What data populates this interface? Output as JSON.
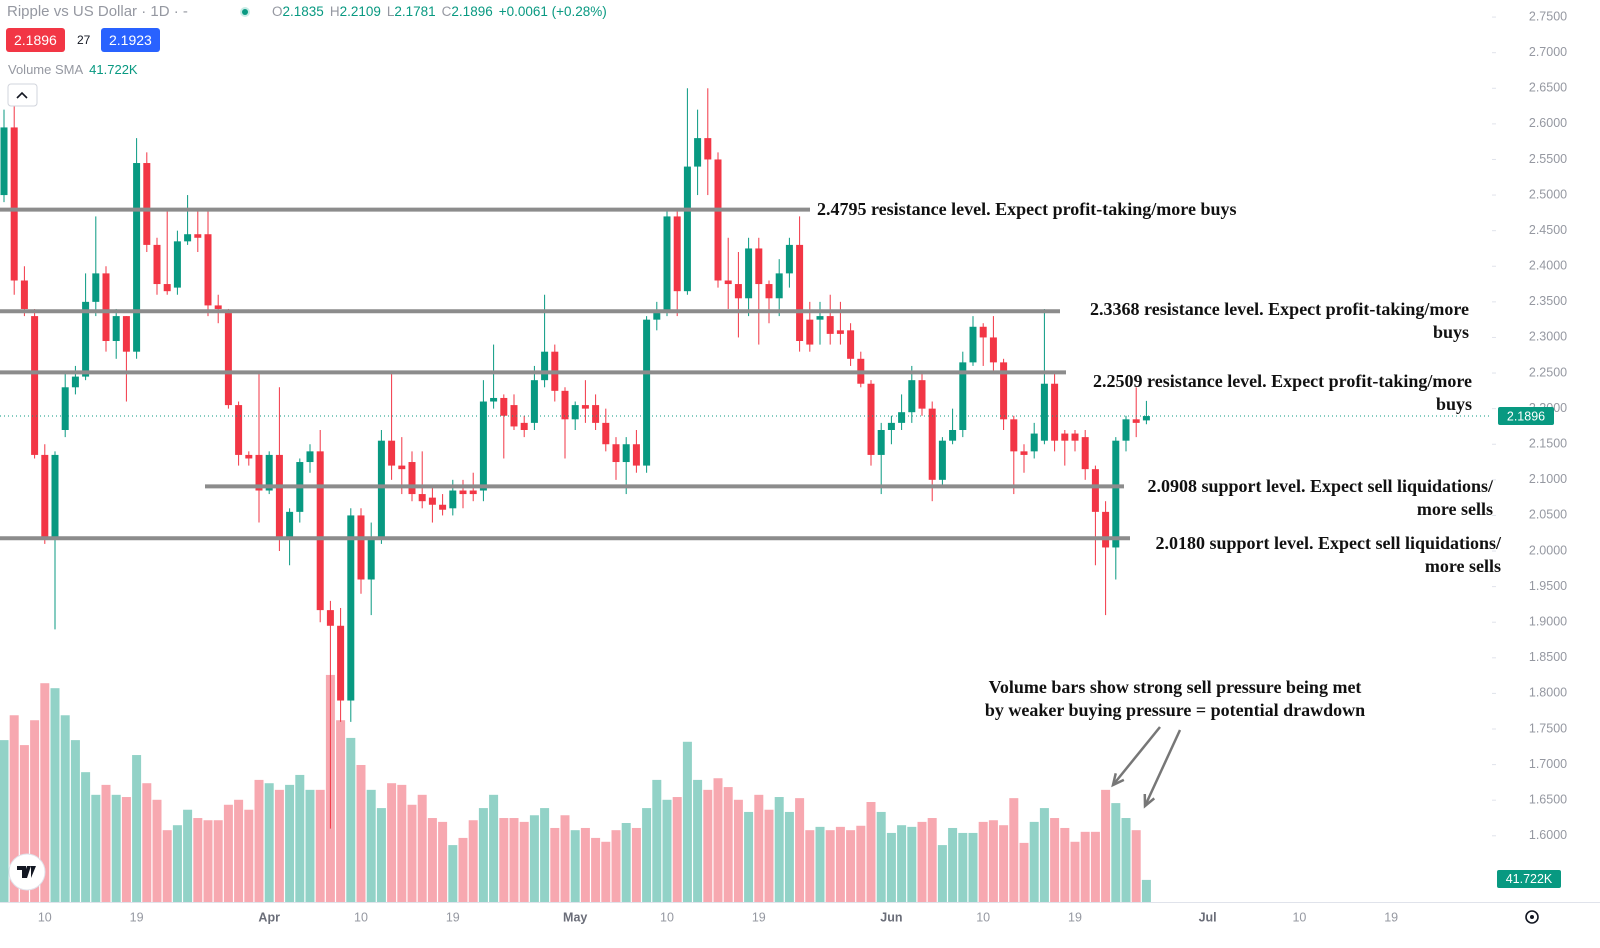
{
  "chart_data": {
    "type": "candlestick",
    "title": "Ripple vs US Dollar · 1D · -",
    "ohlc_labels": [
      {
        "key": "O",
        "value": "2.1835"
      },
      {
        "key": "H",
        "value": "2.2109"
      },
      {
        "key": "L",
        "value": "2.1781"
      },
      {
        "key": "C",
        "value": "2.1896"
      }
    ],
    "change": "+0.0061 (+0.28%)",
    "bid": "2.1896",
    "spread": "27",
    "ask": "2.1923",
    "volume_label": "Volume SMA",
    "volume_sma": {
      "value": 41.722,
      "label": "41.722K"
    },
    "last_price": 2.1896,
    "ylim": [
      1.507,
      2.774
    ],
    "yticks": [
      {
        "value": 2.75,
        "label": "2.7500"
      },
      {
        "value": 2.7,
        "label": "2.7000"
      },
      {
        "value": 2.65,
        "label": "2.6500"
      },
      {
        "value": 2.6,
        "label": "2.6000"
      },
      {
        "value": 2.55,
        "label": "2.5500"
      },
      {
        "value": 2.5,
        "label": "2.5000"
      },
      {
        "value": 2.45,
        "label": "2.4500"
      },
      {
        "value": 2.4,
        "label": "2.4000"
      },
      {
        "value": 2.35,
        "label": "2.3500"
      },
      {
        "value": 2.3,
        "label": "2.3000"
      },
      {
        "value": 2.25,
        "label": "2.2500"
      },
      {
        "value": 2.2,
        "label": "2.2000"
      },
      {
        "value": 2.15,
        "label": "2.1500"
      },
      {
        "value": 2.1,
        "label": "2.1000"
      },
      {
        "value": 2.05,
        "label": "2.0500"
      },
      {
        "value": 2.0,
        "label": "2.0000"
      },
      {
        "value": 1.95,
        "label": "1.9500"
      },
      {
        "value": 1.9,
        "label": "1.9000"
      },
      {
        "value": 1.85,
        "label": "1.8500"
      },
      {
        "value": 1.8,
        "label": "1.8000"
      },
      {
        "value": 1.75,
        "label": "1.7500"
      },
      {
        "value": 1.7,
        "label": "1.7000"
      },
      {
        "value": 1.65,
        "label": "1.6500"
      },
      {
        "value": 1.6,
        "label": "1.6000"
      }
    ],
    "colors": {
      "up": "#089981",
      "down": "#f23645",
      "volume_up": "#92d2c7",
      "volume_down": "#f7a8b0"
    },
    "categories": [
      null,
      null,
      null,
      null,
      "10",
      null,
      null,
      null,
      null,
      null,
      null,
      null,
      null,
      "19",
      null,
      null,
      null,
      null,
      null,
      null,
      null,
      null,
      null,
      null,
      null,
      null,
      "Apr",
      null,
      null,
      null,
      null,
      null,
      null,
      null,
      null,
      "10",
      null,
      null,
      null,
      null,
      null,
      null,
      null,
      null,
      "19",
      null,
      null,
      null,
      null,
      null,
      null,
      null,
      null,
      null,
      null,
      null,
      "May",
      null,
      null,
      null,
      null,
      null,
      null,
      null,
      null,
      "10",
      null,
      null,
      null,
      null,
      null,
      null,
      null,
      null,
      "19",
      null,
      null,
      null,
      null,
      null,
      null,
      null,
      null,
      null,
      null,
      null,
      null,
      "Jun",
      null,
      null,
      null,
      null,
      null,
      null,
      null,
      null,
      "10",
      null,
      null,
      null,
      null,
      null,
      null,
      null,
      null,
      "19",
      null,
      null,
      null,
      null,
      null,
      null,
      null,
      null,
      null,
      null,
      null,
      null,
      "Jul",
      null,
      null,
      null,
      null,
      null,
      null,
      null,
      null,
      "10",
      null,
      null,
      null,
      null,
      null,
      null,
      null,
      null,
      "19"
    ],
    "series": [
      {
        "values": [
          [
            2.5,
            2.62,
            2.49,
            2.595
          ],
          [
            2.595,
            2.63,
            2.36,
            2.38
          ],
          [
            2.38,
            2.4,
            2.33,
            2.34
          ],
          [
            2.33,
            2.34,
            2.13,
            2.135
          ],
          [
            2.135,
            2.15,
            2.01,
            2.02
          ],
          [
            2.02,
            2.14,
            1.89,
            2.135
          ],
          [
            2.17,
            2.25,
            2.16,
            2.23
          ],
          [
            2.23,
            2.26,
            2.22,
            2.245
          ],
          [
            2.245,
            2.39,
            2.24,
            2.35
          ],
          [
            2.35,
            2.47,
            2.33,
            2.39
          ],
          [
            2.39,
            2.4,
            2.28,
            2.295
          ],
          [
            2.295,
            2.34,
            2.27,
            2.33
          ],
          [
            2.33,
            2.33,
            2.21,
            2.28
          ],
          [
            2.28,
            2.58,
            2.27,
            2.545
          ],
          [
            2.545,
            2.56,
            2.42,
            2.43
          ],
          [
            2.43,
            2.44,
            2.36,
            2.375
          ],
          [
            2.375,
            2.48,
            2.36,
            2.365
          ],
          [
            2.37,
            2.45,
            2.36,
            2.435
          ],
          [
            2.435,
            2.5,
            2.43,
            2.445
          ],
          [
            2.445,
            2.48,
            2.42,
            2.44
          ],
          [
            2.445,
            2.48,
            2.33,
            2.345
          ],
          [
            2.345,
            2.36,
            2.32,
            2.34
          ],
          [
            2.335,
            2.34,
            2.2,
            2.205
          ],
          [
            2.205,
            2.21,
            2.12,
            2.135
          ],
          [
            2.135,
            2.14,
            2.12,
            2.13
          ],
          [
            2.135,
            2.25,
            2.04,
            2.085
          ],
          [
            2.085,
            2.14,
            2.08,
            2.135
          ],
          [
            2.135,
            2.23,
            2.0,
            2.02
          ],
          [
            2.02,
            2.06,
            1.98,
            2.055
          ],
          [
            2.055,
            2.13,
            2.04,
            2.125
          ],
          [
            2.125,
            2.15,
            2.11,
            2.14
          ],
          [
            2.14,
            2.17,
            1.9,
            1.917
          ],
          [
            1.917,
            1.93,
            1.61,
            1.895
          ],
          [
            1.895,
            1.92,
            1.76,
            1.79
          ],
          [
            1.79,
            2.06,
            1.76,
            2.05
          ],
          [
            2.05,
            2.06,
            1.94,
            1.96
          ],
          [
            1.96,
            2.04,
            1.91,
            2.02
          ],
          [
            2.02,
            2.17,
            2.01,
            2.155
          ],
          [
            2.155,
            2.25,
            2.1,
            2.12
          ],
          [
            2.12,
            2.16,
            2.08,
            2.115
          ],
          [
            2.125,
            2.14,
            2.07,
            2.08
          ],
          [
            2.08,
            2.14,
            2.06,
            2.07
          ],
          [
            2.075,
            2.09,
            2.04,
            2.065
          ],
          [
            2.065,
            2.08,
            2.05,
            2.058
          ],
          [
            2.06,
            2.1,
            2.05,
            2.085
          ],
          [
            2.085,
            2.1,
            2.06,
            2.08
          ],
          [
            2.085,
            2.11,
            2.07,
            2.08
          ],
          [
            2.085,
            2.24,
            2.07,
            2.21
          ],
          [
            2.21,
            2.29,
            2.2,
            2.215
          ],
          [
            2.215,
            2.22,
            2.13,
            2.19
          ],
          [
            2.205,
            2.22,
            2.17,
            2.175
          ],
          [
            2.18,
            2.19,
            2.16,
            2.17
          ],
          [
            2.18,
            2.26,
            2.17,
            2.24
          ],
          [
            2.24,
            2.36,
            2.23,
            2.28
          ],
          [
            2.28,
            2.29,
            2.21,
            2.225
          ],
          [
            2.225,
            2.23,
            2.13,
            2.185
          ],
          [
            2.185,
            2.21,
            2.17,
            2.205
          ],
          [
            2.205,
            2.24,
            2.18,
            2.2
          ],
          [
            2.205,
            2.22,
            2.17,
            2.18
          ],
          [
            2.18,
            2.2,
            2.14,
            2.15
          ],
          [
            2.15,
            2.16,
            2.1,
            2.125
          ],
          [
            2.125,
            2.16,
            2.08,
            2.15
          ],
          [
            2.15,
            2.17,
            2.11,
            2.12
          ],
          [
            2.12,
            2.33,
            2.11,
            2.325
          ],
          [
            2.325,
            2.35,
            2.31,
            2.335
          ],
          [
            2.335,
            2.48,
            2.33,
            2.47
          ],
          [
            2.47,
            2.48,
            2.33,
            2.365
          ],
          [
            2.365,
            2.65,
            2.36,
            2.54
          ],
          [
            2.54,
            2.62,
            2.5,
            2.58
          ],
          [
            2.58,
            2.65,
            2.5,
            2.55
          ],
          [
            2.55,
            2.56,
            2.37,
            2.38
          ],
          [
            2.38,
            2.44,
            2.34,
            2.375
          ],
          [
            2.375,
            2.42,
            2.3,
            2.355
          ],
          [
            2.355,
            2.44,
            2.33,
            2.425
          ],
          [
            2.425,
            2.44,
            2.29,
            2.375
          ],
          [
            2.375,
            2.38,
            2.32,
            2.355
          ],
          [
            2.355,
            2.41,
            2.33,
            2.39
          ],
          [
            2.39,
            2.44,
            2.37,
            2.43
          ],
          [
            2.43,
            2.47,
            2.28,
            2.295
          ],
          [
            2.325,
            2.35,
            2.28,
            2.29
          ],
          [
            2.325,
            2.35,
            2.29,
            2.33
          ],
          [
            2.33,
            2.36,
            2.29,
            2.305
          ],
          [
            2.31,
            2.35,
            2.29,
            2.305
          ],
          [
            2.31,
            2.32,
            2.26,
            2.27
          ],
          [
            2.27,
            2.28,
            2.23,
            2.235
          ],
          [
            2.235,
            2.24,
            2.12,
            2.135
          ],
          [
            2.135,
            2.18,
            2.08,
            2.17
          ],
          [
            2.17,
            2.19,
            2.15,
            2.18
          ],
          [
            2.18,
            2.22,
            2.17,
            2.195
          ],
          [
            2.195,
            2.26,
            2.18,
            2.24
          ],
          [
            2.24,
            2.25,
            2.19,
            2.2
          ],
          [
            2.2,
            2.21,
            2.07,
            2.1
          ],
          [
            2.1,
            2.16,
            2.09,
            2.155
          ],
          [
            2.155,
            2.2,
            2.15,
            2.17
          ],
          [
            2.17,
            2.28,
            2.16,
            2.265
          ],
          [
            2.265,
            2.33,
            2.26,
            2.315
          ],
          [
            2.315,
            2.32,
            2.26,
            2.3
          ],
          [
            2.3,
            2.33,
            2.25,
            2.265
          ],
          [
            2.265,
            2.27,
            2.17,
            2.185
          ],
          [
            2.185,
            2.19,
            2.08,
            2.14
          ],
          [
            2.14,
            2.15,
            2.11,
            2.135
          ],
          [
            2.14,
            2.18,
            2.13,
            2.165
          ],
          [
            2.155,
            2.34,
            2.15,
            2.235
          ],
          [
            2.235,
            2.25,
            2.14,
            2.155
          ],
          [
            2.165,
            2.17,
            2.12,
            2.155
          ],
          [
            2.165,
            2.17,
            2.14,
            2.155
          ],
          [
            2.16,
            2.17,
            2.1,
            2.115
          ],
          [
            2.115,
            2.12,
            1.98,
            2.055
          ],
          [
            2.055,
            2.07,
            1.91,
            2.005
          ],
          [
            2.005,
            2.16,
            1.96,
            2.155
          ],
          [
            2.155,
            2.19,
            2.14,
            2.185
          ],
          [
            2.185,
            2.23,
            2.16,
            2.18
          ],
          [
            2.1835,
            2.2109,
            2.1781,
            2.1896
          ],
          null,
          null,
          null,
          null,
          null,
          null,
          null,
          null,
          null,
          null,
          null,
          null,
          null,
          null,
          null,
          null,
          null,
          null,
          null,
          null,
          null,
          null,
          null,
          null
        ]
      },
      {
        "axis": "volume",
        "values": [
          293,
          338,
          284,
          329,
          396,
          387,
          338,
          293,
          235,
          194,
          212,
          194,
          190,
          266,
          215,
          185,
          130,
          139,
          167,
          152,
          148,
          148,
          176,
          185,
          167,
          221,
          215,
          203,
          212,
          230,
          203,
          203,
          411,
          329,
          297,
          248,
          203,
          170,
          215,
          212,
          176,
          194,
          152,
          145,
          103,
          116,
          148,
          170,
          194,
          152,
          152,
          145,
          157,
          170,
          134,
          157,
          130,
          134,
          116,
          109,
          130,
          143,
          134,
          170,
          221,
          185,
          190,
          290,
          221,
          203,
          224,
          208,
          185,
          163,
          194,
          167,
          190,
          163,
          188,
          130,
          136,
          130,
          136,
          130,
          138,
          181,
          163,
          125,
          139,
          136,
          145,
          152,
          103,
          134,
          125,
          125,
          145,
          148,
          139,
          188,
          107,
          145,
          170,
          152,
          134,
          109,
          127,
          127,
          203,
          179,
          152,
          130,
          40,
          null,
          null,
          null,
          null,
          null,
          null,
          null,
          null,
          null,
          null,
          null,
          null,
          null,
          null,
          null,
          null,
          null,
          null,
          null,
          null,
          null,
          null,
          null,
          null
        ]
      }
    ],
    "annotations": [
      {
        "level": 2.4795,
        "lines": [
          "2.4795 resistance level. Expect profit-taking/more buys"
        ]
      },
      {
        "level": 2.3368,
        "lines": [
          "2.3368 resistance level. Expect profit-taking/more",
          "buys"
        ]
      },
      {
        "level": 2.2509,
        "lines": [
          "2.2509 resistance level. Expect profit-taking/more",
          "buys"
        ]
      },
      {
        "level": 2.0908,
        "lines": [
          "2.0908 support level. Expect sell liquidations/",
          "more sells"
        ]
      },
      {
        "level": 2.018,
        "lines": [
          "2.0180 support level. Expect sell liquidations/",
          "more sells"
        ]
      }
    ],
    "note": {
      "lines": [
        "Volume bars show strong sell pressure being met",
        "by weaker buying pressure = potential drawdown"
      ]
    }
  }
}
